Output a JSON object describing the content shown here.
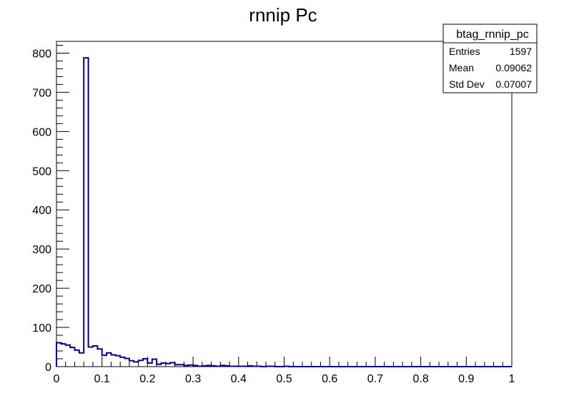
{
  "chart_data": {
    "type": "bar",
    "title": "rnnip Pc",
    "xlabel": "",
    "ylabel": "",
    "xlim": [
      0,
      1
    ],
    "ylim": [
      0,
      830
    ],
    "grid": false,
    "bin_width": 0.01,
    "x_ticks": [
      "0",
      "0.1",
      "0.2",
      "0.3",
      "0.4",
      "0.5",
      "0.6",
      "0.7",
      "0.8",
      "0.9",
      "1"
    ],
    "y_ticks": [
      "0",
      "100",
      "200",
      "300",
      "400",
      "500",
      "600",
      "700",
      "800"
    ],
    "line_color": "#00008b",
    "series": [
      {
        "values": [
          61,
          58,
          55,
          49,
          42,
          35,
          788,
          50,
          53,
          45,
          29,
          35,
          30,
          28,
          24,
          21,
          15,
          12,
          16,
          20,
          9,
          19,
          6,
          9,
          8,
          10,
          5,
          5,
          3,
          4,
          3,
          1,
          2,
          3,
          2,
          1,
          3,
          2,
          1,
          1,
          1,
          1,
          2,
          1,
          1,
          0,
          1,
          1,
          0,
          0,
          1,
          0,
          0,
          0,
          0,
          0,
          0,
          0,
          0,
          0,
          0,
          0,
          0,
          0,
          0,
          0,
          0,
          0,
          0,
          0,
          0,
          0,
          0,
          0,
          0,
          0,
          0,
          0,
          0,
          0,
          0,
          0,
          0,
          0,
          0,
          0,
          0,
          0,
          0,
          0,
          0,
          0,
          0,
          0,
          0,
          0,
          0,
          0,
          0,
          0
        ]
      }
    ],
    "stats_box": {
      "name": "btag_rnnip_pc",
      "rows": [
        {
          "label": "Entries",
          "value": "1597"
        },
        {
          "label": "Mean",
          "value": "0.09062"
        },
        {
          "label": "Std Dev",
          "value": "0.07007"
        }
      ],
      "placement": "top-right"
    }
  }
}
